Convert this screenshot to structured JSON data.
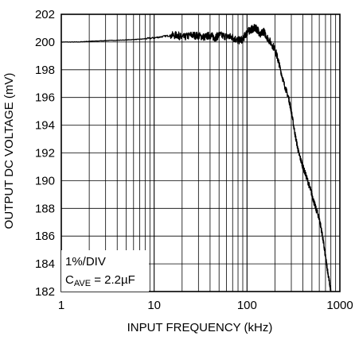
{
  "chart_data": {
    "type": "line",
    "xlabel": "INPUT FREQUENCY (kHz)",
    "ylabel": "OUTPUT DC VOLTAGE (mV)",
    "x_scale": "log",
    "xlim": [
      1,
      1000
    ],
    "ylim": [
      182,
      202
    ],
    "x_ticks": [
      1,
      10,
      100,
      1000
    ],
    "x_tick_labels": [
      "1",
      "10",
      "100",
      "1000"
    ],
    "y_ticks": [
      182,
      184,
      186,
      188,
      190,
      192,
      194,
      196,
      198,
      200,
      202
    ],
    "y_tick_labels": [
      "182",
      "184",
      "186",
      "188",
      "190",
      "192",
      "194",
      "196",
      "198",
      "200",
      "202"
    ],
    "grid": true,
    "line_color": "#000000",
    "annotations": {
      "line1": "1%/DIV",
      "line2_main": "C",
      "line2_sub": "AVE",
      "line2_rest": " = 2.2µF"
    },
    "series": [
      {
        "x": [
          1,
          1.5,
          2,
          3,
          5,
          7,
          10,
          14,
          18,
          20,
          25,
          30,
          35,
          40,
          45,
          50,
          60,
          70,
          80,
          90,
          100,
          110,
          120,
          130,
          140,
          150,
          170,
          200,
          220,
          250,
          280,
          300,
          330,
          360,
          400,
          450,
          500,
          550,
          600,
          650,
          700,
          750,
          800
        ],
        "y": [
          200.0,
          200.0,
          200.05,
          200.1,
          200.15,
          200.2,
          200.3,
          200.45,
          200.5,
          200.3,
          200.5,
          200.45,
          200.35,
          200.5,
          200.3,
          200.5,
          200.4,
          200.35,
          200.1,
          200.2,
          200.7,
          200.9,
          201.0,
          200.9,
          200.5,
          200.8,
          200.2,
          199.5,
          198.5,
          197.0,
          196.0,
          195.0,
          193.3,
          192.0,
          191.0,
          190.0,
          189.0,
          188.0,
          187.3,
          186.0,
          184.5,
          183.2,
          182.0
        ]
      }
    ]
  }
}
